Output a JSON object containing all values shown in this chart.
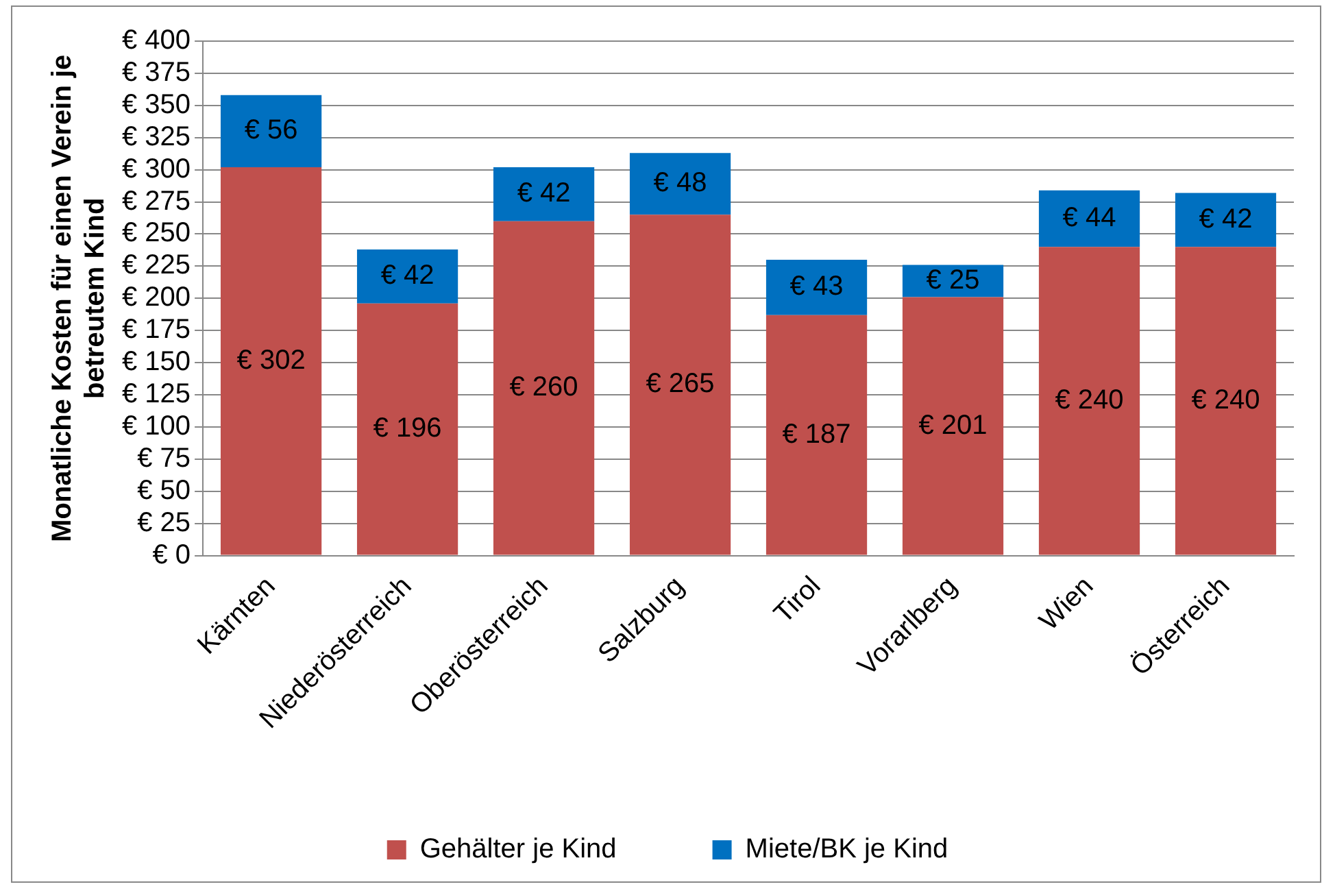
{
  "chart_data": {
    "type": "bar",
    "stacked": true,
    "ylabel": "Monatliche Kosten für einen Verein je betreutem Kind",
    "categories": [
      "Kärnten",
      "Niederösterreich",
      "Oberösterreich",
      "Salzburg",
      "Tirol",
      "Vorarlberg",
      "Wien",
      "Österreich"
    ],
    "series": [
      {
        "name": "Gehälter je Kind",
        "color": "#c0504d",
        "values": [
          302,
          196,
          260,
          265,
          187,
          201,
          240,
          240
        ],
        "value_labels": [
          "€ 302",
          "€ 196",
          "€ 260",
          "€ 265",
          "€ 187",
          "€ 201",
          "€ 240",
          "€ 240"
        ]
      },
      {
        "name": "Miete/BK je Kind",
        "color": "#0070c0",
        "values": [
          56,
          42,
          42,
          48,
          43,
          25,
          44,
          42
        ],
        "value_labels": [
          "€ 56",
          "€ 42",
          "€ 42",
          "€ 48",
          "€ 43",
          "€ 25",
          "€ 44",
          "€ 42"
        ]
      }
    ],
    "ylim": [
      0,
      400
    ],
    "yticks": [
      {
        "value": 0,
        "label": "€ 0"
      },
      {
        "value": 25,
        "label": "€ 25"
      },
      {
        "value": 50,
        "label": "€ 50"
      },
      {
        "value": 75,
        "label": "€ 75"
      },
      {
        "value": 100,
        "label": "€ 100"
      },
      {
        "value": 125,
        "label": "€ 125"
      },
      {
        "value": 150,
        "label": "€ 150"
      },
      {
        "value": 175,
        "label": "€ 175"
      },
      {
        "value": 200,
        "label": "€ 200"
      },
      {
        "value": 225,
        "label": "€ 225"
      },
      {
        "value": 250,
        "label": "€ 250"
      },
      {
        "value": 275,
        "label": "€ 275"
      },
      {
        "value": 300,
        "label": "€ 300"
      },
      {
        "value": 325,
        "label": "€ 325"
      },
      {
        "value": 350,
        "label": "€ 350"
      },
      {
        "value": 375,
        "label": "€ 375"
      },
      {
        "value": 400,
        "label": "€ 400"
      }
    ],
    "grid": "y",
    "legend": "bottom"
  }
}
